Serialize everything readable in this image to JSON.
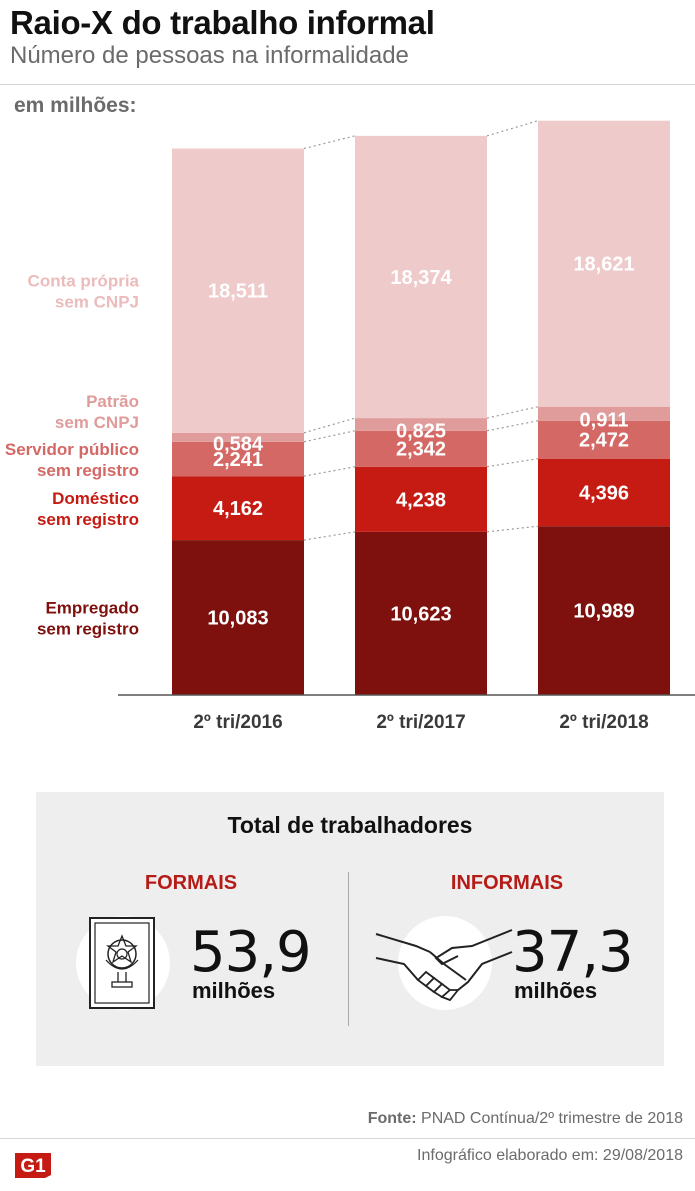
{
  "header": {
    "title": "Raio-X do trabalho informal",
    "subtitle": "Número de pessoas na informalidade",
    "unit": "em milhões:"
  },
  "chart_data": {
    "type": "bar",
    "stacked": true,
    "categories": [
      "2º tri/2016",
      "2º tri/2017",
      "2º tri/2018"
    ],
    "series": [
      {
        "name": "Empregado sem registro",
        "label_lines": [
          "Empregado",
          "sem registro"
        ],
        "color": "#7e110d",
        "label_color": "#7e110d",
        "values": [
          10.083,
          10.623,
          10.989
        ],
        "labels": [
          "10,083",
          "10,623",
          "10,989"
        ]
      },
      {
        "name": "Doméstico sem registro",
        "label_lines": [
          "Doméstico",
          "sem registro"
        ],
        "color": "#c51b13",
        "label_color": "#c51b13",
        "values": [
          4.162,
          4.238,
          4.396
        ],
        "labels": [
          "4,162",
          "4,238",
          "4,396"
        ]
      },
      {
        "name": "Servidor público sem registro",
        "label_lines": [
          "Servidor público",
          "sem registro"
        ],
        "color": "#d46865",
        "label_color": "#d46865",
        "values": [
          2.241,
          2.342,
          2.472
        ],
        "labels": [
          "2,241",
          "2,342",
          "2,472"
        ]
      },
      {
        "name": "Patrão sem CNPJ",
        "label_lines": [
          "Patrão",
          "sem CNPJ"
        ],
        "color": "#e09c9b",
        "label_color": "#e09c9b",
        "values": [
          0.584,
          0.825,
          0.911
        ],
        "labels": [
          "0,584",
          "0,825",
          "0,911"
        ]
      },
      {
        "name": "Conta própria sem CNPJ",
        "label_lines": [
          "Conta própria",
          "sem CNPJ"
        ],
        "color": "#efcaca",
        "label_color": "#ecbcbc",
        "values": [
          18.511,
          18.374,
          18.621
        ],
        "labels": [
          "18,511",
          "18,374",
          "18,621"
        ]
      }
    ]
  },
  "totals": {
    "title": "Total de trabalhadores",
    "formais": {
      "label": "FORMAIS",
      "value": "53,9",
      "unit": "milhões",
      "icon": "work-card-icon"
    },
    "informais": {
      "label": "INFORMAIS",
      "value": "37,3",
      "unit": "milhões",
      "icon": "handshake-icon"
    }
  },
  "footer": {
    "source_label": "Fonte:",
    "source_text": "PNAD Contínua/2º trimestre de 2018",
    "credit": "Infográfico elaborado em: 29/08/2018",
    "logo_text": "G1",
    "logo_color": "#c51b13"
  }
}
